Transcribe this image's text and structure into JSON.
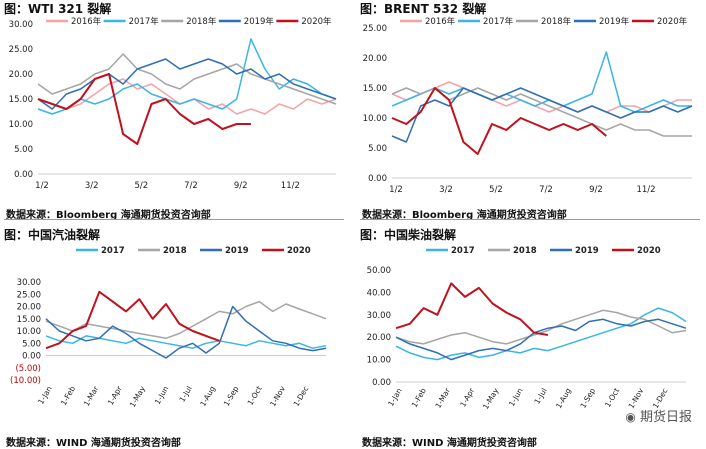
{
  "panels": [
    {
      "title": "图：WTI 321 裂解",
      "source": "数据来源：Bloomberg   海通期货投资咨询部",
      "chart_data": {
        "type": "line",
        "yticks": [
          "30.00",
          "25.00",
          "20.00",
          "15.00",
          "10.00",
          "5.00",
          "0.00"
        ],
        "ylim": [
          0,
          30
        ],
        "xticks": [
          "1/2",
          "3/2",
          "5/2",
          "7/2",
          "9/2",
          "11/2"
        ],
        "series": [
          {
            "name": "2016年",
            "color": "#f4a3a6",
            "values": [
              15,
              14,
              13,
              14,
              16,
              18,
              19,
              17,
              18,
              16,
              14,
              15,
              13,
              14,
              12,
              13,
              12,
              14,
              13,
              15,
              14,
              15
            ]
          },
          {
            "name": "2017年",
            "color": "#39b6e6",
            "values": [
              13,
              12,
              13,
              15,
              14,
              15,
              17,
              18,
              16,
              15,
              14,
              15,
              14,
              13,
              15,
              27,
              21,
              17,
              19,
              18,
              16,
              15
            ]
          },
          {
            "name": "2018年",
            "color": "#a5a5a5",
            "values": [
              18,
              16,
              17,
              18,
              20,
              21,
              24,
              21,
              20,
              18,
              17,
              19,
              20,
              21,
              22,
              20,
              19,
              18,
              17,
              16,
              15,
              14
            ]
          },
          {
            "name": "2019年",
            "color": "#2e6fb5",
            "values": [
              15,
              13,
              16,
              17,
              19,
              20,
              18,
              21,
              22,
              23,
              21,
              22,
              23,
              22,
              20,
              21,
              19,
              20,
              18,
              17,
              16,
              15
            ]
          },
          {
            "name": "2020年",
            "color": "#c0111f",
            "values": [
              15,
              14,
              13,
              15,
              19,
              20,
              8,
              6,
              14,
              15,
              12,
              10,
              11,
              9,
              10,
              10
            ]
          }
        ]
      }
    },
    {
      "title": "图：BRENT 532 裂解",
      "source": "数据来源：Bloomberg   海通期货投资咨询部",
      "chart_data": {
        "type": "line",
        "yticks": [
          "25.00",
          "20.00",
          "15.00",
          "10.00",
          "5.00",
          "0.00"
        ],
        "ylim": [
          0,
          25
        ],
        "xticks": [
          "1/2",
          "3/2",
          "5/2",
          "7/2",
          "9/2",
          "11/2"
        ],
        "series": [
          {
            "name": "2016年",
            "color": "#f4a3a6",
            "values": [
              14,
              13,
              14,
              15,
              16,
              15,
              14,
              13,
              12,
              13,
              12,
              11,
              12,
              11,
              12,
              11,
              12,
              12,
              11,
              12,
              13,
              13
            ]
          },
          {
            "name": "2017年",
            "color": "#39b6e6",
            "values": [
              12,
              13,
              14,
              15,
              14,
              15,
              14,
              13,
              14,
              13,
              12,
              13,
              12,
              13,
              14,
              21,
              12,
              11,
              12,
              13,
              12,
              12
            ]
          },
          {
            "name": "2018年",
            "color": "#a5a5a5",
            "values": [
              14,
              15,
              14,
              15,
              13,
              14,
              15,
              14,
              13,
              14,
              13,
              12,
              11,
              10,
              9,
              8,
              9,
              8,
              8,
              7,
              7,
              7
            ]
          },
          {
            "name": "2019年",
            "color": "#2e6fb5",
            "values": [
              7,
              6,
              12,
              13,
              12,
              15,
              14,
              13,
              14,
              15,
              14,
              13,
              12,
              11,
              12,
              11,
              10,
              11,
              11,
              12,
              11,
              12
            ]
          },
          {
            "name": "2020年",
            "color": "#c0111f",
            "values": [
              10,
              9,
              11,
              15,
              13,
              6,
              4,
              9,
              8,
              10,
              9,
              8,
              9,
              8,
              9,
              7
            ]
          }
        ]
      }
    },
    {
      "title": "图：中国汽油裂解",
      "source": "数据来源：WIND   海通期货投资咨询部",
      "chart_data": {
        "type": "line",
        "yticks": [
          "30.00",
          "25.00",
          "20.00",
          "15.00",
          "10.00",
          "5.00",
          "0.00",
          "(5.00)",
          "(10.00)"
        ],
        "ylim": [
          -10,
          30
        ],
        "xticks": [
          "1-Jan",
          "1-Feb",
          "1-Mar",
          "1-Apr",
          "1-May",
          "1-Jun",
          "1-Jul",
          "1-Aug",
          "1-Sep",
          "1-Oct",
          "1-Nov",
          "1-Dec"
        ],
        "series": [
          {
            "name": "2017",
            "color": "#39b6e6",
            "values": [
              8,
              6,
              5,
              8,
              7,
              6,
              5,
              7,
              6,
              5,
              4,
              3,
              5,
              6,
              5,
              4,
              6,
              5,
              4,
              5,
              3,
              4
            ]
          },
          {
            "name": "2018",
            "color": "#a5a5a5",
            "values": [
              14,
              12,
              10,
              13,
              12,
              11,
              10,
              9,
              8,
              7,
              9,
              12,
              15,
              18,
              17,
              20,
              22,
              18,
              21,
              19,
              17,
              15
            ]
          },
          {
            "name": "2019",
            "color": "#2e6fb5",
            "values": [
              15,
              10,
              8,
              6,
              7,
              12,
              9,
              5,
              2,
              -1,
              3,
              5,
              1,
              5,
              20,
              14,
              10,
              6,
              5,
              3,
              2,
              3
            ]
          },
          {
            "name": "2020",
            "color": "#c0111f",
            "values": [
              3,
              5,
              10,
              12,
              26,
              22,
              18,
              23,
              15,
              21,
              13,
              10,
              8,
              6
            ]
          }
        ]
      }
    },
    {
      "title": "图：中国柴油裂解",
      "source": "数据来源：WIND   海通期货投资咨询部",
      "chart_data": {
        "type": "line",
        "yticks": [
          "50.00",
          "40.00",
          "30.00",
          "20.00",
          "10.00",
          "0.00"
        ],
        "ylim": [
          0,
          50
        ],
        "xticks": [
          "1-Jan",
          "1-Feb",
          "1-Mar",
          "1-Apr",
          "1-May",
          "1-Jun",
          "1-Jul",
          "1-Aug",
          "1-Sep",
          "1-Oct",
          "1-Nov",
          "1-Dec"
        ],
        "series": [
          {
            "name": "2017",
            "color": "#39b6e6",
            "values": [
              16,
              13,
              11,
              10,
              12,
              13,
              11,
              12,
              14,
              13,
              15,
              14,
              16,
              18,
              20,
              22,
              24,
              26,
              30,
              33,
              31,
              27
            ]
          },
          {
            "name": "2018",
            "color": "#a5a5a5",
            "values": [
              20,
              18,
              17,
              19,
              21,
              22,
              20,
              18,
              17,
              19,
              21,
              23,
              26,
              28,
              30,
              32,
              31,
              29,
              28,
              25,
              22,
              23
            ]
          },
          {
            "name": "2019",
            "color": "#2e6fb5",
            "values": [
              20,
              17,
              15,
              13,
              10,
              12,
              14,
              15,
              14,
              17,
              22,
              24,
              25,
              23,
              27,
              28,
              26,
              25,
              27,
              28,
              26,
              24
            ]
          },
          {
            "name": "2020",
            "color": "#c0111f",
            "values": [
              24,
              26,
              33,
              30,
              44,
              38,
              42,
              35,
              31,
              28,
              22,
              21
            ]
          }
        ]
      }
    }
  ],
  "watermark": "期货日报"
}
